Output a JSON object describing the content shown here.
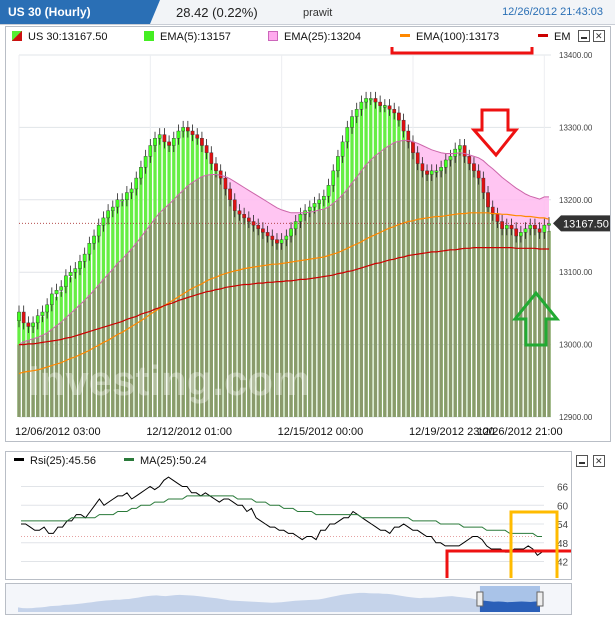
{
  "header": {
    "instrument_tab": "US 30 (Hourly)",
    "change": "28.42 (0.22%)",
    "user": "prawit",
    "timestamp": "12/26/2012 21:43:03"
  },
  "legend": {
    "price": "US 30:13167.50",
    "ema5": "EMA(5):13157",
    "ema25": "EMA(25):13204",
    "ema100": "EMA(100):13173",
    "ema_extra": "EM"
  },
  "lower_legend": {
    "rsi": "Rsi(25):45.56",
    "ma": "MA(25):50.24"
  },
  "watermark": "Investing.com",
  "colors": {
    "bull": "#55ee33",
    "bear": "#cc1111",
    "shadow": "#7f8f66",
    "ema5": "#44cc22",
    "ema25": "#ff99ee",
    "ema100": "#ff8800",
    "ema200": "#cc0000",
    "rsi": "#000000",
    "ma": "#2a7a3a",
    "annotation_red": "#ee1111",
    "annotation_green": "#22aa33",
    "annotation_yellow": "#ffbb00"
  },
  "chart_data": [
    {
      "type": "candlestick",
      "ylim": [
        12900,
        13400
      ],
      "yticks": [
        "12900.00",
        "13000.00",
        "13100.00",
        "13200.00",
        "13300.00",
        "13400.00"
      ],
      "xticks": [
        "12/06/2012 03:00",
        "12/12/2012 01:00",
        "12/15/2012 00:00",
        "12/19/2012 23:00",
        "12/26/2012 21:00"
      ],
      "xtick_index": [
        0,
        28,
        56,
        84,
        112
      ],
      "last_price_label": "13167.50",
      "last_price": 13167.5,
      "close": [
        13045,
        13030,
        13025,
        13030,
        13040,
        13045,
        13055,
        13070,
        13075,
        13080,
        13095,
        13100,
        13105,
        13115,
        13125,
        13140,
        13150,
        13165,
        13175,
        13185,
        13190,
        13200,
        13200,
        13210,
        13215,
        13230,
        13245,
        13260,
        13275,
        13285,
        13290,
        13280,
        13275,
        13285,
        13295,
        13300,
        13295,
        13290,
        13285,
        13275,
        13265,
        13250,
        13240,
        13230,
        13215,
        13200,
        13185,
        13180,
        13175,
        13170,
        13165,
        13160,
        13155,
        13150,
        13145,
        13140,
        13145,
        13150,
        13160,
        13170,
        13180,
        13185,
        13190,
        13195,
        13200,
        13205,
        13220,
        13240,
        13260,
        13280,
        13300,
        13315,
        13325,
        13335,
        13340,
        13340,
        13335,
        13330,
        13330,
        13325,
        13320,
        13310,
        13295,
        13280,
        13265,
        13250,
        13240,
        13235,
        13240,
        13240,
        13245,
        13255,
        13260,
        13270,
        13275,
        13260,
        13250,
        13240,
        13230,
        13210,
        13190,
        13180,
        13170,
        13160,
        13165,
        13160,
        13150,
        13155,
        13160,
        13165,
        13160,
        13155,
        13165,
        13167
      ],
      "ema5": [
        13045,
        13037,
        13030,
        13030,
        13035,
        13039,
        13047,
        13058,
        13066,
        13073,
        13085,
        13093,
        13100,
        13109,
        13118,
        13131,
        13142,
        13156,
        13167,
        13178,
        13185,
        13194,
        13197,
        13205,
        13211,
        13224,
        13239,
        13254,
        13269,
        13280,
        13287,
        13283,
        13278,
        13283,
        13291,
        13297,
        13296,
        13292,
        13287,
        13279,
        13269,
        13256,
        13245,
        13235,
        13221,
        13206,
        13192,
        13184,
        13178,
        13172,
        13167,
        13162,
        13157,
        13152,
        13147,
        13142,
        13143,
        13147,
        13155,
        13165,
        13175,
        13182,
        13188,
        13193,
        13198,
        13203,
        13215,
        13232,
        13251,
        13271,
        13291,
        13307,
        13319,
        13330,
        13337,
        13339,
        13336,
        13332,
        13331,
        13327,
        13322,
        13313,
        13300,
        13286,
        13271,
        13257,
        13245,
        13238,
        13239,
        13240,
        13243,
        13251,
        13257,
        13266,
        13272,
        13263,
        13254,
        13245,
        13235,
        13218,
        13199,
        13187,
        13176,
        13165,
        13165,
        13162,
        13154,
        13155,
        13158,
        13163,
        13161,
        13157,
        13163,
        13157
      ],
      "ema25": [
        13000,
        13004,
        13006,
        13008,
        13010,
        13013,
        13016,
        13021,
        13026,
        13031,
        13037,
        13043,
        13049,
        13055,
        13061,
        13068,
        13075,
        13082,
        13090,
        13097,
        13104,
        13112,
        13118,
        13125,
        13132,
        13140,
        13148,
        13157,
        13165,
        13174,
        13182,
        13188,
        13194,
        13200,
        13207,
        13213,
        13219,
        13224,
        13228,
        13232,
        13234,
        13235,
        13235,
        13234,
        13232,
        13229,
        13225,
        13221,
        13217,
        13213,
        13209,
        13205,
        13201,
        13197,
        13193,
        13189,
        13186,
        13184,
        13182,
        13182,
        13182,
        13182,
        13183,
        13184,
        13186,
        13187,
        13190,
        13195,
        13200,
        13207,
        13214,
        13223,
        13231,
        13240,
        13248,
        13255,
        13261,
        13266,
        13271,
        13275,
        13279,
        13281,
        13282,
        13282,
        13280,
        13278,
        13275,
        13272,
        13269,
        13267,
        13265,
        13264,
        13264,
        13264,
        13265,
        13264,
        13262,
        13260,
        13258,
        13254,
        13248,
        13243,
        13237,
        13231,
        13226,
        13221,
        13216,
        13212,
        13208,
        13205,
        13203,
        13201,
        13204,
        13204
      ],
      "ema100": [
        12960,
        12962,
        12963,
        12964,
        12965,
        12967,
        12969,
        12971,
        12973,
        12975,
        12978,
        12981,
        12983,
        12986,
        12989,
        12992,
        12996,
        12999,
        13003,
        13006,
        13010,
        13014,
        13017,
        13021,
        13025,
        13029,
        13033,
        13037,
        13042,
        13046,
        13050,
        13054,
        13058,
        13062,
        13066,
        13070,
        13074,
        13078,
        13081,
        13084,
        13088,
        13091,
        13093,
        13096,
        13098,
        13100,
        13102,
        13103,
        13105,
        13106,
        13107,
        13108,
        13109,
        13110,
        13111,
        13111,
        13112,
        13113,
        13114,
        13115,
        13116,
        13117,
        13118,
        13119,
        13120,
        13121,
        13123,
        13125,
        13127,
        13130,
        13133,
        13136,
        13139,
        13142,
        13146,
        13149,
        13152,
        13155,
        13158,
        13161,
        13163,
        13166,
        13168,
        13170,
        13171,
        13173,
        13174,
        13175,
        13176,
        13177,
        13177,
        13178,
        13179,
        13180,
        13181,
        13181,
        13182,
        13182,
        13182,
        13182,
        13182,
        13181,
        13181,
        13180,
        13180,
        13179,
        13178,
        13178,
        13177,
        13177,
        13176,
        13175,
        13175,
        13173
      ],
      "ema200": [
        13000,
        13000,
        13001,
        13001,
        13002,
        13003,
        13004,
        13005,
        13006,
        13007,
        13009,
        13010,
        13012,
        13014,
        13016,
        13018,
        13020,
        13022,
        13024,
        13026,
        13028,
        13030,
        13032,
        13035,
        13037,
        13039,
        13042,
        13044,
        13046,
        13049,
        13051,
        13054,
        13056,
        13058,
        13061,
        13063,
        13065,
        13067,
        13069,
        13071,
        13073,
        13074,
        13076,
        13077,
        13079,
        13080,
        13081,
        13082,
        13083,
        13083,
        13084,
        13085,
        13085,
        13086,
        13086,
        13087,
        13087,
        13088,
        13088,
        13089,
        13090,
        13090,
        13091,
        13092,
        13093,
        13094,
        13095,
        13096,
        13098,
        13099,
        13101,
        13102,
        13104,
        13106,
        13108,
        13110,
        13112,
        13113,
        13115,
        13117,
        13118,
        13120,
        13121,
        13123,
        13124,
        13125,
        13126,
        13127,
        13128,
        13128,
        13129,
        13130,
        13131,
        13131,
        13132,
        13133,
        13133,
        13134,
        13134,
        13134,
        13134,
        13134,
        13134,
        13134,
        13134,
        13134,
        13133,
        13133,
        13133,
        13133,
        13133,
        13132,
        13132,
        13132
      ]
    },
    {
      "type": "line",
      "yticks": [
        "42",
        "48",
        "54",
        "60",
        "66"
      ],
      "ylim": [
        38,
        70
      ],
      "series": [
        {
          "name": "Rsi(25):45.56",
          "values": [
            54,
            54,
            53,
            52,
            52,
            53,
            51,
            51,
            53,
            53,
            55,
            55,
            57,
            57,
            56,
            58,
            60,
            62,
            60,
            61,
            62,
            63,
            63,
            64,
            62,
            63,
            64,
            65,
            66,
            65,
            66,
            68,
            69,
            68,
            67,
            66,
            66,
            64,
            64,
            63,
            64,
            63,
            62,
            61,
            62,
            62,
            61,
            60,
            60,
            58,
            59,
            56,
            55,
            54,
            53,
            53,
            52,
            52,
            51,
            51,
            50,
            49,
            50,
            50,
            49,
            52,
            52,
            54,
            54,
            55,
            56,
            56,
            58,
            57,
            56,
            55,
            54,
            53,
            52,
            52,
            51,
            53,
            53,
            54,
            53,
            52,
            52,
            51,
            50,
            50,
            48,
            48,
            47,
            47,
            47,
            47,
            48,
            49,
            50,
            50,
            49,
            47,
            46,
            46,
            46,
            45,
            45,
            46,
            46,
            46,
            47,
            46,
            44,
            45
          ]
        },
        {
          "name": "MA(25):50.24",
          "values": [
            55,
            55,
            55,
            55,
            55,
            55,
            55,
            55,
            55,
            55,
            55,
            56,
            56,
            56,
            56,
            56,
            56,
            57,
            57,
            57,
            57,
            58,
            58,
            58,
            59,
            59,
            60,
            60,
            60,
            61,
            61,
            61,
            62,
            62,
            62,
            62,
            63,
            63,
            63,
            63,
            63,
            63,
            63,
            63,
            63,
            63,
            63,
            62,
            62,
            62,
            62,
            61,
            61,
            61,
            60,
            60,
            60,
            59,
            59,
            59,
            58,
            58,
            58,
            58,
            57,
            57,
            57,
            57,
            57,
            57,
            57,
            57,
            57,
            57,
            56,
            56,
            56,
            56,
            56,
            56,
            56,
            56,
            56,
            56,
            56,
            55,
            55,
            55,
            55,
            55,
            55,
            54,
            54,
            54,
            54,
            54,
            53,
            53,
            53,
            53,
            53,
            52,
            52,
            52,
            52,
            52,
            51,
            51,
            51,
            51,
            51,
            51,
            50,
            50
          ]
        }
      ]
    }
  ]
}
